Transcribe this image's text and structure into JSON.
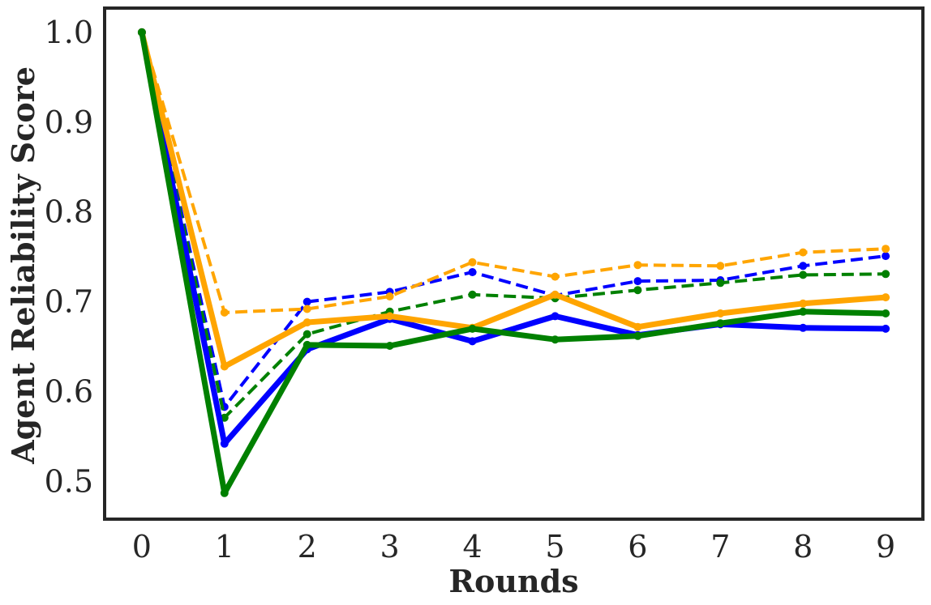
{
  "chart_data": {
    "type": "line",
    "title": "",
    "xlabel": "Rounds",
    "ylabel": "Agent Reliability Score",
    "x": [
      0,
      1,
      2,
      3,
      4,
      5,
      6,
      7,
      8,
      9
    ],
    "xlim": [
      -0.45,
      9.45
    ],
    "ylim": [
      0.458,
      1.027
    ],
    "yticks": [
      0.5,
      0.6,
      0.7,
      0.8,
      0.9,
      1.0
    ],
    "ytick_labels": [
      "0.5",
      "0.6",
      "0.7",
      "0.8",
      "0.9",
      "1.0"
    ],
    "xtick_labels": [
      "0",
      "1",
      "2",
      "3",
      "4",
      "5",
      "6",
      "7",
      "8",
      "9"
    ],
    "grid": false,
    "legend": "none",
    "series": [
      {
        "color": "#0000ff",
        "style": "solid",
        "values": [
          1.0,
          0.542,
          0.647,
          0.681,
          0.656,
          0.684,
          0.663,
          0.675,
          0.671,
          0.67
        ]
      },
      {
        "color": "#ffa500",
        "style": "solid",
        "values": [
          1.0,
          0.628,
          0.677,
          0.684,
          0.671,
          0.708,
          0.672,
          0.687,
          0.698,
          0.705
        ]
      },
      {
        "color": "#008000",
        "style": "solid",
        "values": [
          1.0,
          0.487,
          0.652,
          0.651,
          0.67,
          0.658,
          0.662,
          0.676,
          0.689,
          0.687
        ]
      },
      {
        "color": "#0000ff",
        "style": "dashed",
        "values": [
          1.0,
          0.583,
          0.7,
          0.711,
          0.733,
          0.707,
          0.723,
          0.724,
          0.74,
          0.751
        ]
      },
      {
        "color": "#ffa500",
        "style": "dashed",
        "values": [
          1.0,
          0.688,
          0.692,
          0.706,
          0.744,
          0.728,
          0.741,
          0.74,
          0.755,
          0.759
        ]
      },
      {
        "color": "#008000",
        "style": "dashed",
        "values": [
          1.0,
          0.571,
          0.664,
          0.689,
          0.708,
          0.704,
          0.713,
          0.721,
          0.73,
          0.731
        ]
      }
    ]
  }
}
